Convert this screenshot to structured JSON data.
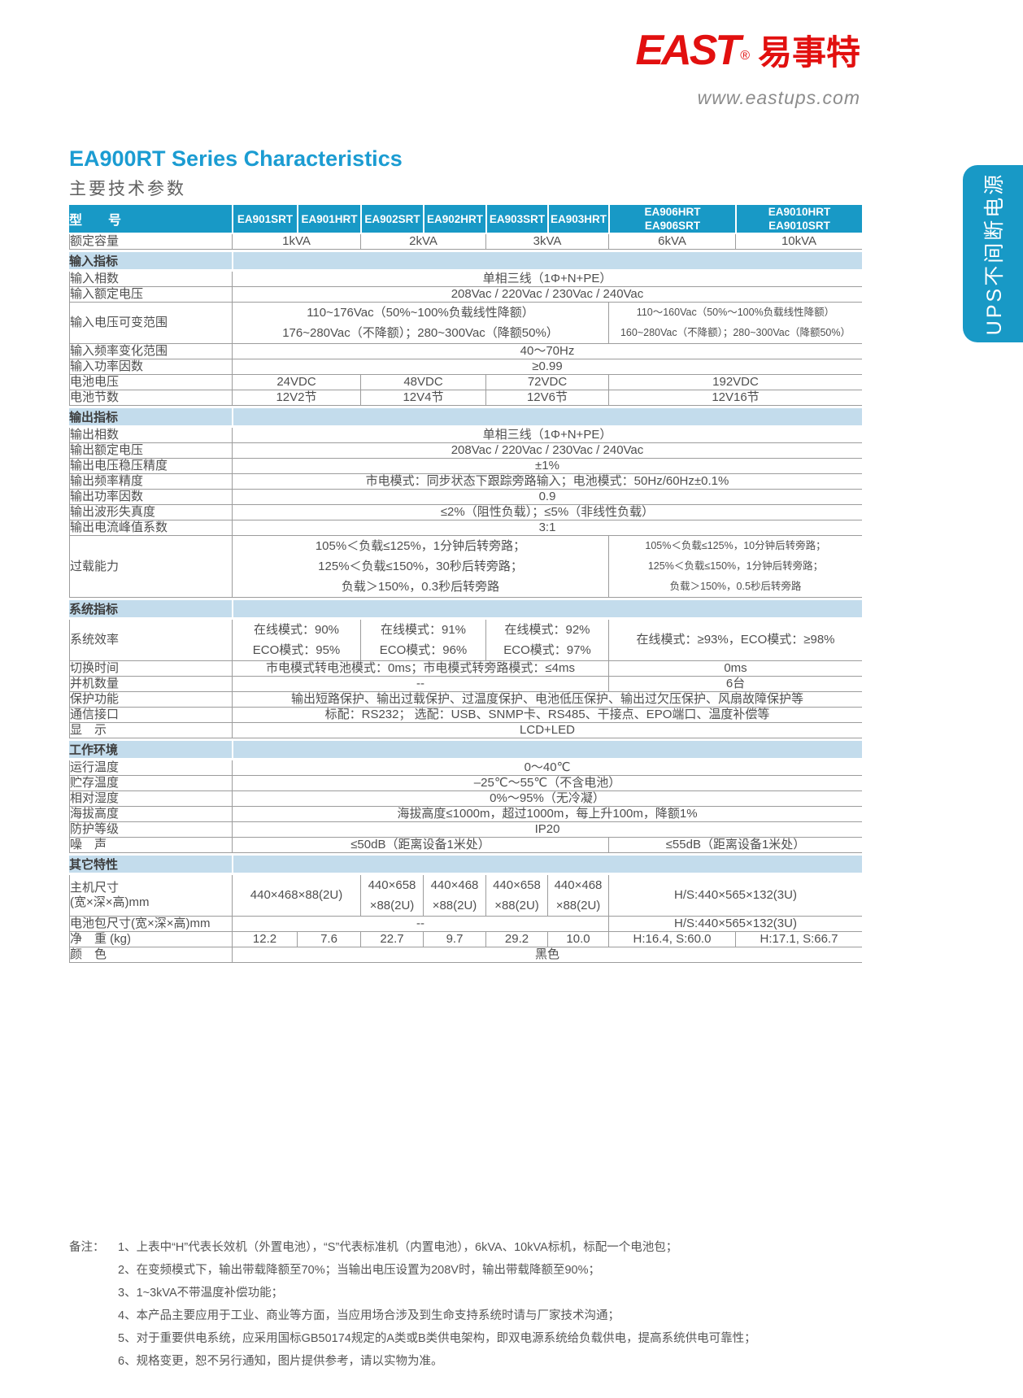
{
  "brand": {
    "logo_text": "EAST",
    "registered": "®",
    "logo_cn": "易事特",
    "website": "www.eastups.com"
  },
  "side_tab": "UPS不间断电源",
  "title": "EA900RT Series Characteristics",
  "subtitle": "主要技术参数",
  "colors": {
    "header_cyan": "#1899c6",
    "title_blue": "#1b9cd2",
    "section_bg": "#c3dcec",
    "logo_red": "#e2100f"
  },
  "table": {
    "header": {
      "label": "型　　号",
      "models": [
        {
          "lines": [
            "EA901SRT"
          ]
        },
        {
          "lines": [
            "EA901HRT"
          ]
        },
        {
          "lines": [
            "EA902SRT"
          ]
        },
        {
          "lines": [
            "EA902HRT"
          ]
        },
        {
          "lines": [
            "EA903SRT"
          ]
        },
        {
          "lines": [
            "EA903HRT"
          ]
        },
        {
          "lines": [
            "EA906HRT",
            "EA906SRT"
          ]
        },
        {
          "lines": [
            "EA9010HRT",
            "EA9010SRT"
          ]
        }
      ]
    },
    "rows": [
      {
        "id": "rated-capacity",
        "label": "额定容量",
        "cells": [
          {
            "text": "1kVA",
            "span": 2
          },
          {
            "text": "2kVA",
            "span": 2
          },
          {
            "text": "3kVA",
            "span": 2
          },
          {
            "text": "6kVA",
            "span": 1
          },
          {
            "text": "10kVA",
            "span": 1
          }
        ]
      },
      {
        "id": "input-spec",
        "section": "输入指标"
      },
      {
        "id": "input-phase",
        "label": "输入相数",
        "cells": [
          {
            "text": "单相三线（1Φ+N+PE）",
            "span": 8
          }
        ]
      },
      {
        "id": "input-rated-voltage",
        "label": "输入额定电压",
        "cells": [
          {
            "text": "208Vac / 220Vac / 230Vac / 240Vac",
            "span": 8
          }
        ]
      },
      {
        "id": "input-voltage-range",
        "label": "输入电压可变范围",
        "cells": [
          {
            "lines": [
              "110~176Vac（50%~100%负载线性降额）",
              "176~280Vac（不降额）；280~300Vac（降额50%）"
            ],
            "span": 6
          },
          {
            "lines": [
              "110～160Vac（50%～100%负载线性降额）",
              "160~280Vac（不降额）；280~300Vac（降额50%）"
            ],
            "span": 2,
            "small": true
          }
        ]
      },
      {
        "id": "input-frequency-range",
        "label": "输入频率变化范围",
        "cells": [
          {
            "text": "40～70Hz",
            "span": 8
          }
        ]
      },
      {
        "id": "input-power-factor",
        "label": "输入功率因数",
        "cells": [
          {
            "text": "≥0.99",
            "span": 8
          }
        ]
      },
      {
        "id": "battery-voltage",
        "label": "电池电压",
        "cells": [
          {
            "text": "24VDC",
            "span": 2
          },
          {
            "text": "48VDC",
            "span": 2
          },
          {
            "text": "72VDC",
            "span": 2
          },
          {
            "text": "192VDC",
            "span": 2
          }
        ]
      },
      {
        "id": "battery-count",
        "label": "电池节数",
        "cells": [
          {
            "text": "12V2节",
            "span": 2
          },
          {
            "text": "12V4节",
            "span": 2
          },
          {
            "text": "12V6节",
            "span": 2
          },
          {
            "text": "12V16节",
            "span": 2
          }
        ]
      },
      {
        "id": "output-spec",
        "section": "输出指标"
      },
      {
        "id": "output-phase",
        "label": "输出相数",
        "cells": [
          {
            "text": "单相三线（1Φ+N+PE）",
            "span": 8
          }
        ]
      },
      {
        "id": "output-rated-voltage",
        "label": "输出额定电压",
        "cells": [
          {
            "text": "208Vac / 220Vac / 230Vac / 240Vac",
            "span": 8
          }
        ]
      },
      {
        "id": "output-voltage-precision",
        "label": "输出电压稳压精度",
        "cells": [
          {
            "text": "±1%",
            "span": 8
          }
        ]
      },
      {
        "id": "output-frequency-precision",
        "label": "输出频率精度",
        "cells": [
          {
            "text": "市电模式：同步状态下跟踪旁路输入；电池模式：50Hz/60Hz±0.1%",
            "span": 8
          }
        ]
      },
      {
        "id": "output-power-factor",
        "label": "输出功率因数",
        "cells": [
          {
            "text": "0.9",
            "span": 8
          }
        ]
      },
      {
        "id": "output-waveform-distortion",
        "label": "输出波形失真度",
        "cells": [
          {
            "text": "≤2%（阻性负载）；≤5%（非线性负载）",
            "span": 8
          }
        ]
      },
      {
        "id": "output-crest-factor",
        "label": "输出电流峰值系数",
        "cells": [
          {
            "text": "3:1",
            "span": 8
          }
        ]
      },
      {
        "id": "overload-capacity",
        "label": "过载能力",
        "cells": [
          {
            "lines": [
              "105%＜负载≤125%，1分钟后转旁路；",
              "125%＜负载≤150%，30秒后转旁路；",
              "负载＞150%，0.3秒后转旁路"
            ],
            "span": 6
          },
          {
            "lines": [
              "105%＜负载≤125%，10分钟后转旁路；",
              "125%＜负载≤150%，1分钟后转旁路；",
              "负载＞150%，0.5秒后转旁路"
            ],
            "span": 2,
            "small": true
          }
        ]
      },
      {
        "id": "system-spec",
        "section": "系统指标"
      },
      {
        "id": "system-efficiency",
        "label": "系统效率",
        "cells": [
          {
            "lines": [
              "在线模式：90%",
              "ECO模式：95%"
            ],
            "span": 2
          },
          {
            "lines": [
              "在线模式：91%",
              "ECO模式：96%"
            ],
            "span": 2
          },
          {
            "lines": [
              "在线模式：92%",
              "ECO模式：97%"
            ],
            "span": 2
          },
          {
            "text": "在线模式：≥93%，ECO模式：≥98%",
            "span": 2
          }
        ]
      },
      {
        "id": "transfer-time",
        "label": "切换时间",
        "cells": [
          {
            "text": "市电模式转电池模式：0ms；市电模式转旁路模式：≤4ms",
            "span": 6
          },
          {
            "text": "0ms",
            "span": 2
          }
        ]
      },
      {
        "id": "parallel-number",
        "label": "并机数量",
        "cells": [
          {
            "text": "--",
            "span": 6
          },
          {
            "text": "6台",
            "span": 2
          }
        ]
      },
      {
        "id": "protection",
        "label": "保护功能",
        "cells": [
          {
            "text": "输出短路保护、输出过载保护、过温度保护、电池低压保护、输出过欠压保护、风扇故障保护等",
            "span": 8
          }
        ]
      },
      {
        "id": "communication",
        "label": "通信接口",
        "cells": [
          {
            "text": "标配：RS232；  选配：USB、SNMP卡、RS485、干接点、EPO端口、温度补偿等",
            "span": 8
          }
        ]
      },
      {
        "id": "display",
        "label": "显　示",
        "cells": [
          {
            "text": "LCD+LED",
            "span": 8
          }
        ]
      },
      {
        "id": "environment",
        "section": "工作环境"
      },
      {
        "id": "operating-temperature",
        "label": "运行温度",
        "cells": [
          {
            "text": "0～40℃",
            "span": 8
          }
        ]
      },
      {
        "id": "storage-temperature",
        "label": "贮存温度",
        "cells": [
          {
            "text": "–25℃～55℃（不含电池）",
            "span": 8
          }
        ]
      },
      {
        "id": "relative-humidity",
        "label": "相对湿度",
        "cells": [
          {
            "text": "0%～95%（无冷凝）",
            "span": 8
          }
        ]
      },
      {
        "id": "altitude",
        "label": "海拔高度",
        "cells": [
          {
            "text": "海拔高度≤1000m，超过1000m，每上升100m，降额1%",
            "span": 8
          }
        ]
      },
      {
        "id": "protection-grade",
        "label": "防护等级",
        "cells": [
          {
            "text": "IP20",
            "span": 8
          }
        ]
      },
      {
        "id": "noise",
        "label": "噪　声",
        "cells": [
          {
            "text": "≤50dB（距离设备1米处）",
            "span": 6
          },
          {
            "text": "≤55dB（距离设备1米处）",
            "span": 2
          }
        ]
      },
      {
        "id": "other-features",
        "section": "其它特性"
      },
      {
        "id": "unit-dimensions",
        "label_lines": [
          "主机尺寸",
          "(宽×深×高)mm"
        ],
        "cells": [
          {
            "text": "440×468×88(2U)",
            "span": 2
          },
          {
            "lines": [
              "440×658",
              "×88(2U)"
            ],
            "span": 1
          },
          {
            "lines": [
              "440×468",
              "×88(2U)"
            ],
            "span": 1
          },
          {
            "lines": [
              "440×658",
              "×88(2U)"
            ],
            "span": 1
          },
          {
            "lines": [
              "440×468",
              "×88(2U)"
            ],
            "span": 1
          },
          {
            "text": "H/S:440×565×132(3U)",
            "span": 2
          }
        ]
      },
      {
        "id": "battery-pack-dimensions",
        "label": "电池包尺寸(宽×深×高)mm",
        "cells": [
          {
            "text": "--",
            "span": 6
          },
          {
            "text": "H/S:440×565×132(3U)",
            "span": 2
          }
        ]
      },
      {
        "id": "net-weight",
        "label": "净　重 (kg)",
        "cells": [
          {
            "text": "12.2",
            "span": 1
          },
          {
            "text": "7.6",
            "span": 1
          },
          {
            "text": "22.7",
            "span": 1
          },
          {
            "text": "9.7",
            "span": 1
          },
          {
            "text": "29.2",
            "span": 1
          },
          {
            "text": "10.0",
            "span": 1
          },
          {
            "text": "H:16.4, S:60.0",
            "span": 1
          },
          {
            "text": "H:17.1, S:66.7",
            "span": 1
          }
        ]
      },
      {
        "id": "color",
        "label": "颜　色",
        "cells": [
          {
            "text": "黑色",
            "span": 8
          }
        ]
      }
    ]
  },
  "notes": {
    "label": "备注：",
    "items": [
      "1、上表中“H”代表长效机（外置电池），“S”代表标准机（内置电池），6kVA、10kVA标机，标配一个电池包；",
      "2、在变频模式下，输出带载降额至70%；当输出电压设置为208V时，输出带载降额至90%；",
      "3、1~3kVA不带温度补偿功能；",
      "4、本产品主要应用于工业、商业等方面，当应用场合涉及到生命支持系统时请与厂家技术沟通；",
      "5、对于重要供电系统，应采用国标GB50174规定的A类或B类供电架构，即双电源系统给负载供电，提高系统供电可靠性；",
      "6、规格变更，恕不另行通知，图片提供参考，请以实物为准。"
    ]
  }
}
